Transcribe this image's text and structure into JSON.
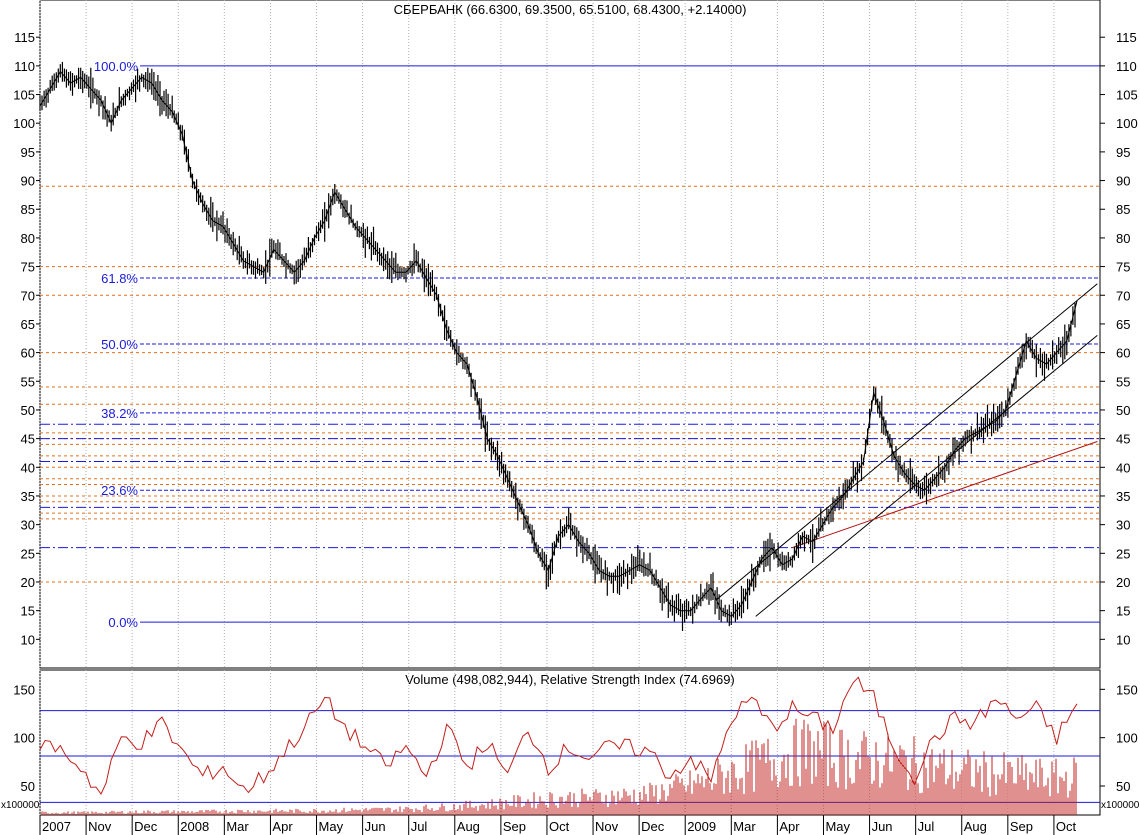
{
  "chart_data": [
    {
      "type": "line",
      "title": "СБЕРБАНК (66.6300, 69.3500, 65.5100, 68.4300, +2.14000)",
      "ylim": [
        5,
        118
      ],
      "y_ticks": [
        10,
        15,
        20,
        25,
        30,
        35,
        40,
        45,
        50,
        55,
        60,
        65,
        70,
        75,
        80,
        85,
        90,
        95,
        100,
        105,
        110,
        115
      ],
      "x_labels": [
        "2007",
        "Nov",
        "Dec",
        "2008",
        "Mar",
        "Apr",
        "May",
        "Jun",
        "Jul",
        "Aug",
        "Sep",
        "Oct",
        "Nov",
        "Dec",
        "2009",
        "Mar",
        "Apr",
        "May",
        "Jun",
        "Jul",
        "Aug",
        "Sep",
        "Oct"
      ],
      "fibonacci_levels": [
        {
          "label": "100.0%",
          "value": 110.0
        },
        {
          "label": "61.8%",
          "value": 73.0
        },
        {
          "label": "50.0%",
          "value": 61.5
        },
        {
          "label": "38.2%",
          "value": 49.5
        },
        {
          "label": "23.6%",
          "value": 36.0
        },
        {
          "label": "0.0%",
          "value": 13.0
        }
      ],
      "colors": {
        "price": "#000000",
        "fib_solid": "#1a1adb",
        "fib_dash": "#1a1adb",
        "orange_grid": "#e07020",
        "trend_red": "#b01010",
        "grid": "#b0b0b0"
      },
      "series": [
        {
          "x": [
            0,
            5,
            10,
            15,
            20,
            25,
            30,
            35,
            40,
            45,
            50,
            55,
            60,
            65,
            70,
            75,
            80,
            85,
            90,
            95,
            100,
            105,
            110,
            115,
            120,
            125,
            130,
            135,
            140,
            145,
            150,
            155,
            160,
            165,
            170,
            175,
            180,
            185,
            190,
            195,
            200,
            205,
            210,
            215,
            220,
            225,
            230,
            235,
            240,
            245,
            250,
            255,
            260,
            265,
            270,
            275,
            280,
            285,
            290,
            295,
            300,
            305,
            310,
            315,
            320,
            325,
            330,
            335,
            340,
            345,
            350,
            355,
            360,
            365,
            370,
            375,
            380,
            385,
            390,
            395,
            400,
            405,
            410,
            415,
            420,
            425,
            430,
            435,
            440,
            445,
            450,
            455,
            460,
            465,
            470,
            475,
            480,
            485,
            490,
            495,
            500,
            505,
            510
          ],
          "values": [
            103,
            106,
            109,
            107,
            108,
            106,
            104,
            100,
            104,
            106,
            108,
            107,
            104,
            102,
            98,
            90,
            86,
            83,
            82,
            79,
            76,
            75,
            74,
            78,
            76,
            74,
            76,
            80,
            83,
            88,
            85,
            82,
            80,
            78,
            76,
            74,
            74,
            76,
            73,
            70,
            64,
            60,
            58,
            52,
            45,
            42,
            38,
            34,
            30,
            25,
            22,
            28,
            30,
            27,
            25,
            22,
            21,
            21,
            22,
            23,
            22,
            19,
            16,
            15,
            15,
            17,
            19,
            15,
            14,
            16,
            20,
            24,
            26,
            23,
            24,
            28,
            27,
            30,
            33,
            35,
            38,
            41,
            53,
            48,
            42,
            39,
            37,
            36,
            38,
            40,
            43,
            45,
            46,
            47,
            48,
            50,
            56,
            62,
            59,
            58,
            60,
            62,
            69
          ]
        }
      ]
    },
    {
      "type": "line",
      "title": "Volume (498,082,944), Relative Strength Index (74.6969)",
      "ylim": [
        20,
        170
      ],
      "y_ticks": [
        50,
        100,
        150
      ],
      "multiplier_label": "x100000",
      "reference_lines": [
        128,
        81,
        33
      ],
      "series": [
        {
          "name": "Relative Strength Index",
          "x": [
            0,
            10,
            20,
            30,
            40,
            50,
            60,
            70,
            80,
            90,
            100,
            110,
            120,
            130,
            140,
            150,
            160,
            170,
            180,
            190,
            200,
            210,
            220,
            230,
            240,
            250,
            260,
            270,
            280,
            290,
            300,
            310,
            320,
            330,
            340,
            350,
            360,
            370,
            380,
            390,
            400,
            410,
            420,
            430,
            440,
            450,
            460,
            470,
            480,
            490,
            500,
            510
          ],
          "values": [
            95,
            88,
            70,
            40,
            100,
            95,
            115,
            85,
            60,
            70,
            45,
            60,
            85,
            110,
            140,
            110,
            90,
            70,
            90,
            60,
            110,
            70,
            95,
            60,
            110,
            70,
            90,
            80,
            90,
            90,
            85,
            60,
            80,
            55,
            120,
            140,
            110,
            130,
            120,
            110,
            160,
            140,
            90,
            60,
            100,
            120,
            115,
            140,
            120,
            130,
            100,
            135
          ]
        },
        {
          "name": "Volume",
          "x": [
            0,
            25,
            50,
            75,
            100,
            125,
            150,
            175,
            200,
            225,
            250,
            275,
            300,
            325,
            350,
            375,
            400,
            425,
            450,
            475,
            500,
            510
          ],
          "values": [
            3,
            3,
            4,
            4,
            5,
            5,
            6,
            7,
            10,
            14,
            20,
            22,
            26,
            40,
            60,
            80,
            70,
            65,
            55,
            50,
            45,
            48
          ]
        }
      ]
    }
  ]
}
